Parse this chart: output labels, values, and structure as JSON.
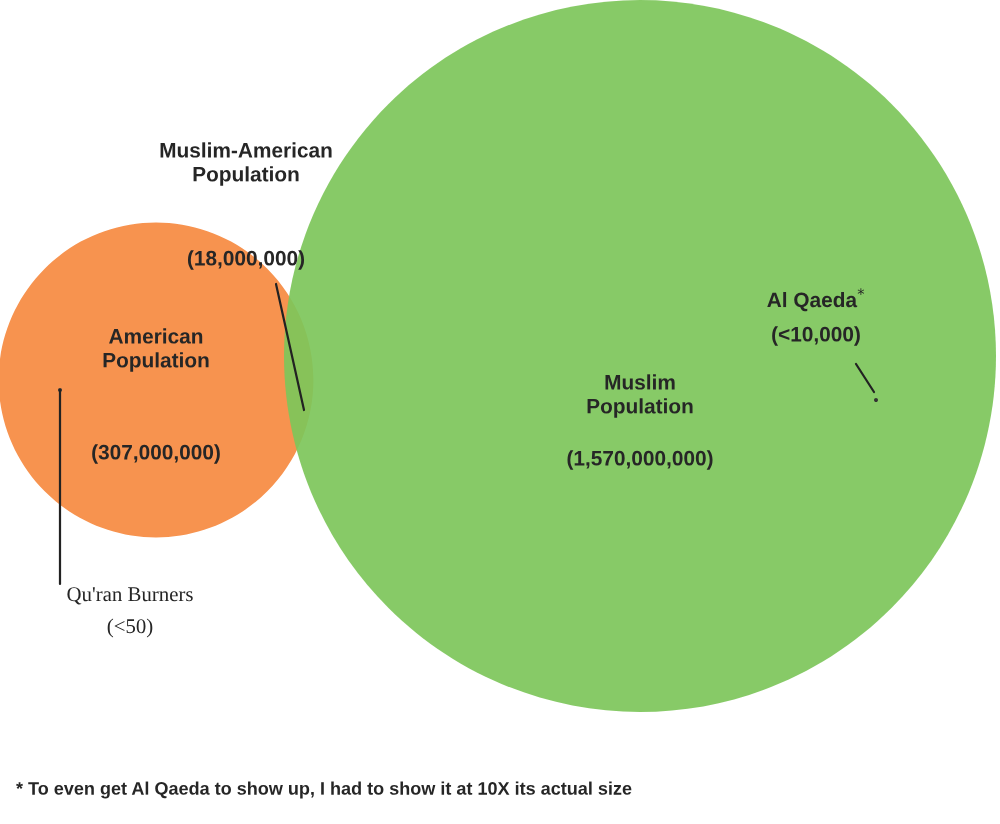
{
  "chart_data": {
    "type": "other",
    "categories": [
      "American\nPopulation",
      "Muslim\nPopulation",
      "Muslim-American\nPopulation",
      "Al Qaeda$^{*}$",
      "Qu'ran Burners"
    ],
    "values": [
      307000000,
      1570000000,
      18000000,
      10000,
      50
    ],
    "value_labels": [
      "(307,000,000)",
      "(1,570,000,000)",
      "(18,000,000)",
      "(<10,000)",
      "(<50)"
    ],
    "colors": [
      "#f7934f",
      "#7dc55a",
      "#8fa742",
      "#333333",
      "#333333"
    ],
    "annotations": [
      "* To even get Al Qaeda to show up, I had to show it at 10X its actual size"
    ]
  }
}
